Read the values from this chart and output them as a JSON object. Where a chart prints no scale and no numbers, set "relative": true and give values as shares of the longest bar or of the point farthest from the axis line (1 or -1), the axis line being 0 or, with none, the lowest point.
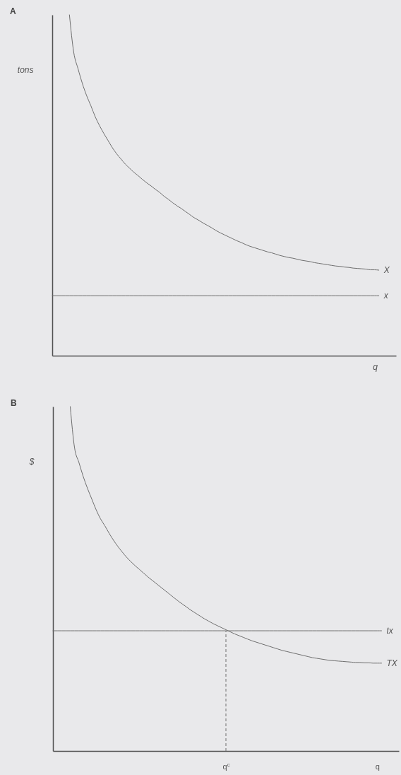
{
  "chart_data": [
    {
      "type": "line",
      "title": "A",
      "ylabel": "tons",
      "xlabel": "q",
      "relative": true,
      "categories": [
        null,
        null,
        null,
        null,
        null,
        null,
        null,
        null,
        null,
        null,
        null,
        null,
        null,
        null,
        null,
        null,
        null,
        null,
        null,
        null,
        null,
        null,
        null,
        null,
        null,
        null,
        null,
        null,
        null,
        null,
        null,
        null,
        null,
        null,
        null,
        null,
        null,
        null,
        null,
        null,
        null,
        null,
        null,
        null,
        null,
        null,
        null,
        null,
        null,
        null,
        null,
        null,
        null,
        null,
        null,
        null,
        null,
        null,
        null,
        null,
        null,
        null,
        null,
        null,
        null,
        null,
        null,
        null,
        null,
        null,
        null,
        null,
        null,
        null,
        null,
        null,
        null,
        null,
        null,
        null,
        null
      ],
      "series": [
        {
          "name": "X",
          "color": "#6e6e6e",
          "values": [
            null,
            null,
            null,
            null,
            1,
            0.89,
            0.842,
            0.799,
            0.763,
            0.733,
            0.701,
            0.675,
            0.652,
            0.631,
            0.61,
            0.592,
            0.577,
            0.562,
            0.55,
            0.538,
            0.528,
            0.517,
            0.507,
            0.498,
            0.488,
            0.479,
            0.468,
            0.459,
            0.449,
            0.44,
            0.432,
            0.423,
            0.414,
            0.405,
            0.398,
            0.39,
            0.383,
            0.376,
            0.368,
            0.361,
            0.355,
            0.349,
            0.343,
            0.337,
            0.332,
            0.326,
            0.321,
            0.317,
            0.313,
            0.309,
            0.305,
            0.302,
            0.298,
            0.294,
            0.291,
            0.288,
            0.286,
            0.283,
            0.28,
            0.278,
            0.276,
            0.273,
            0.271,
            0.269,
            0.267,
            0.265,
            0.263,
            0.262,
            0.26,
            0.259,
            0.257,
            0.256,
            0.255,
            0.254,
            0.252,
            0.252,
            0.251,
            null,
            null,
            null,
            null
          ]
        },
        {
          "name": "x",
          "color": "#6e6e6e",
          "values": [
            0.176,
            0.176,
            0.176,
            0.176,
            0.176,
            0.176,
            0.176,
            0.176,
            0.176,
            0.176,
            0.176,
            0.176,
            0.176,
            0.176,
            0.176,
            0.176,
            0.176,
            0.176,
            0.176,
            0.176,
            0.176,
            0.176,
            0.176,
            0.176,
            0.176,
            0.176,
            0.176,
            0.176,
            0.176,
            0.176,
            0.176,
            0.176,
            0.176,
            0.176,
            0.176,
            0.176,
            0.176,
            0.176,
            0.176,
            0.176,
            0.176,
            0.176,
            0.176,
            0.176,
            0.176,
            0.176,
            0.176,
            0.176,
            0.176,
            0.176,
            0.176,
            0.176,
            0.176,
            0.176,
            0.176,
            0.176,
            0.176,
            0.176,
            0.176,
            0.176,
            0.176,
            0.176,
            0.176,
            0.176,
            0.176,
            0.176,
            0.176,
            0.176,
            0.176,
            0.176,
            0.176,
            0.176,
            0.176,
            0.176,
            0.176,
            0.176,
            0.176,
            null,
            null,
            null,
            null
          ]
        }
      ]
    },
    {
      "type": "line",
      "title": "B",
      "ylabel": "$",
      "relative": true,
      "categories": [
        null,
        null,
        null,
        null,
        null,
        null,
        null,
        null,
        null,
        null,
        null,
        null,
        null,
        null,
        null,
        null,
        null,
        null,
        null,
        null,
        null,
        null,
        null,
        null,
        null,
        null,
        null,
        null,
        null,
        null,
        null,
        null,
        null,
        null,
        null,
        null,
        null,
        null,
        null,
        null,
        "q$^{c}$",
        null,
        null,
        null,
        null,
        null,
        null,
        null,
        null,
        null,
        null,
        null,
        null,
        null,
        null,
        null,
        null,
        null,
        null,
        null,
        null,
        null,
        null,
        null,
        null,
        null,
        null,
        null,
        null,
        null,
        null,
        null,
        null,
        null,
        null,
        "q",
        null,
        null,
        null,
        null,
        null
      ],
      "series": [
        {
          "name": "tx",
          "color": "#6e6e6e",
          "values": [
            0.349,
            0.349,
            0.349,
            0.349,
            0.349,
            0.349,
            0.349,
            0.349,
            0.349,
            0.349,
            0.349,
            0.349,
            0.349,
            0.349,
            0.349,
            0.349,
            0.349,
            0.349,
            0.349,
            0.349,
            0.349,
            0.349,
            0.349,
            0.349,
            0.349,
            0.349,
            0.349,
            0.349,
            0.349,
            0.349,
            0.349,
            0.349,
            0.349,
            0.349,
            0.349,
            0.349,
            0.349,
            0.349,
            0.349,
            0.349,
            0.349,
            0.349,
            0.349,
            0.349,
            0.349,
            0.349,
            0.349,
            0.349,
            0.349,
            0.349,
            0.349,
            0.349,
            0.349,
            0.349,
            0.349,
            0.349,
            0.349,
            0.349,
            0.349,
            0.349,
            0.349,
            0.349,
            0.349,
            0.349,
            0.349,
            0.349,
            0.349,
            0.349,
            0.349,
            0.349,
            0.349,
            0.349,
            0.349,
            0.349,
            0.349,
            0.349,
            0.349,
            null,
            null,
            null,
            null
          ]
        },
        {
          "name": "TX",
          "color": "#6e6e6e",
          "values": [
            null,
            null,
            null,
            null,
            1,
            0.88,
            0.838,
            0.797,
            0.762,
            0.731,
            0.7,
            0.674,
            0.654,
            0.632,
            0.612,
            0.594,
            0.578,
            0.563,
            0.55,
            0.538,
            0.527,
            0.516,
            0.505,
            0.495,
            0.485,
            0.475,
            0.465,
            0.455,
            0.445,
            0.435,
            0.426,
            0.417,
            0.408,
            0.4,
            0.392,
            0.384,
            0.377,
            0.37,
            0.364,
            0.358,
            0.352,
            0.346,
            0.34,
            0.335,
            0.33,
            0.325,
            0.32,
            0.316,
            0.312,
            0.308,
            0.304,
            0.3,
            0.296,
            0.292,
            0.289,
            0.286,
            0.283,
            0.28,
            0.277,
            0.274,
            0.271,
            0.269,
            0.267,
            0.265,
            0.263,
            0.262,
            0.261,
            0.26,
            0.259,
            0.258,
            0.257,
            0.257,
            0.256,
            0.256,
            0.255,
            0.255,
            0.255,
            null,
            null,
            null,
            null
          ]
        }
      ],
      "ref_lines": [
        {
          "axis": "x",
          "value": "q$^{c}$",
          "line_style": "dashed"
        }
      ]
    }
  ]
}
